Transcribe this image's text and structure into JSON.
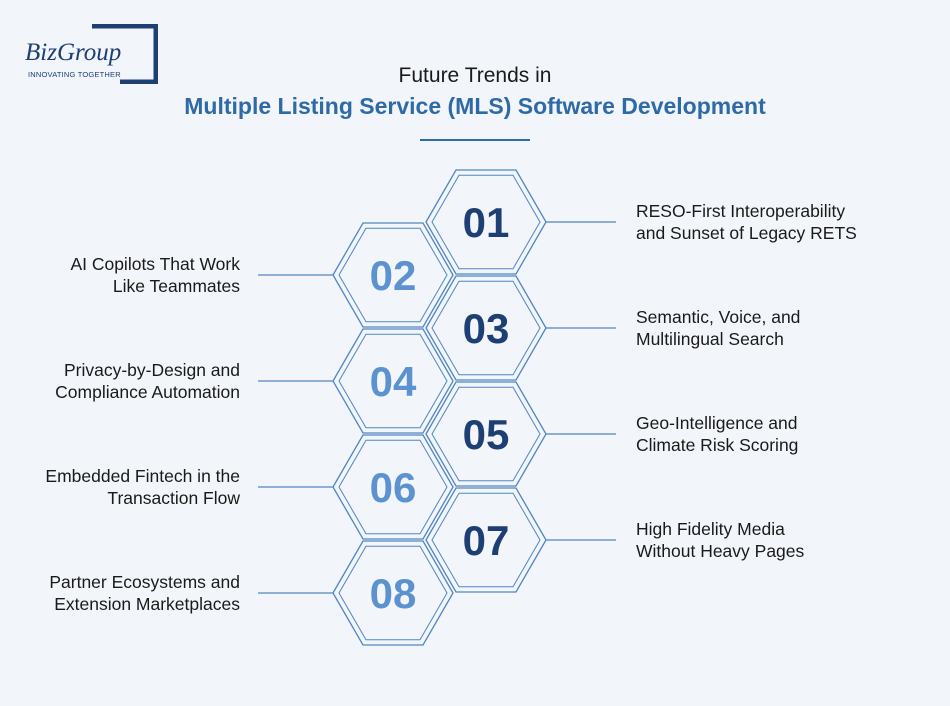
{
  "logo": {
    "text": "BizGroup",
    "tagline": "INNOVATING TOGETHER"
  },
  "title": {
    "line1": "Future Trends in",
    "line2": "Multiple Listing Service (MLS) Software Development"
  },
  "colors": {
    "accent": "#2f6aa8",
    "dark_number": "#1e3f73",
    "light_number": "#5b92cf"
  },
  "trends": [
    {
      "number": "01",
      "label_lines": [
        "RESO-First Interoperability",
        "and Sunset of Legacy RETS"
      ]
    },
    {
      "number": "02",
      "label_lines": [
        "AI Copilots That Work",
        "Like Teammates"
      ]
    },
    {
      "number": "03",
      "label_lines": [
        "Semantic, Voice, and",
        "Multilingual Search"
      ]
    },
    {
      "number": "04",
      "label_lines": [
        "Privacy-by-Design and",
        "Compliance Automation"
      ]
    },
    {
      "number": "05",
      "label_lines": [
        "Geo-Intelligence and",
        "Climate Risk Scoring"
      ]
    },
    {
      "number": "06",
      "label_lines": [
        "Embedded Fintech in the",
        "Transaction Flow"
      ]
    },
    {
      "number": "07",
      "label_lines": [
        "High Fidelity Media",
        "Without Heavy Pages"
      ]
    },
    {
      "number": "08",
      "label_lines": [
        "Partner Ecosystems and",
        "Extension Marketplaces"
      ]
    }
  ]
}
